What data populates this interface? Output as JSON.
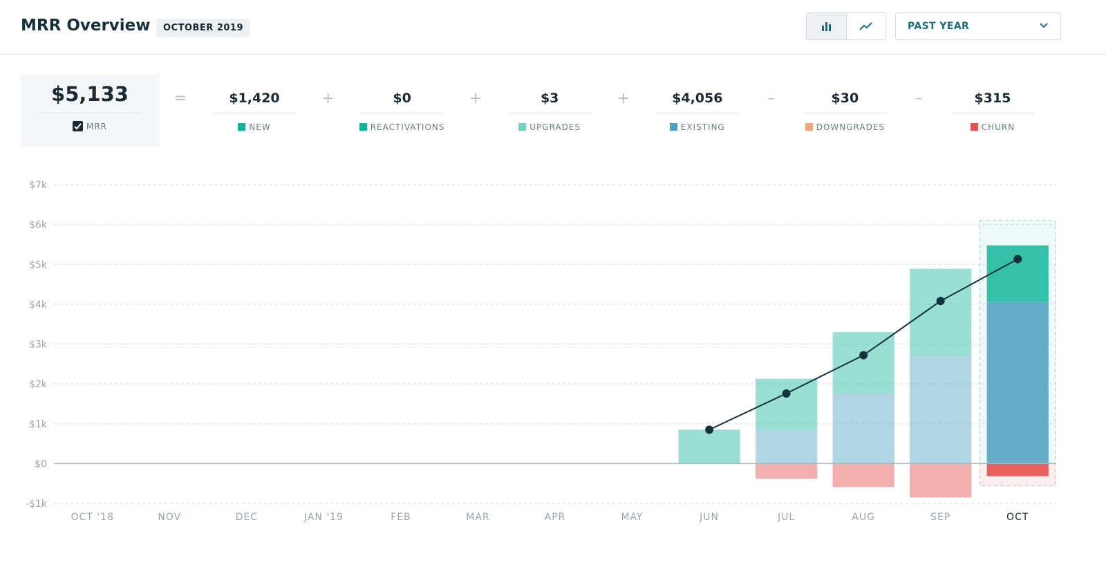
{
  "header": {
    "title": "MRR Overview",
    "badge": "OCTOBER 2019",
    "range": "PAST YEAR"
  },
  "summary": {
    "total": {
      "value": "$5,133",
      "label": "MRR"
    },
    "items": [
      {
        "operator": "=",
        "value": "$1,420",
        "label": "NEW",
        "color": "#13b29b"
      },
      {
        "operator": "+",
        "value": "$0",
        "label": "REACTIVATIONS",
        "color": "#13b29b"
      },
      {
        "operator": "+",
        "value": "$3",
        "label": "UPGRADES",
        "color": "#72d3bf"
      },
      {
        "operator": "+",
        "value": "$4,056",
        "label": "EXISTING",
        "color": "#4f9fc0"
      },
      {
        "operator": "–",
        "value": "$30",
        "label": "DOWNGRADES",
        "color": "#f4a57a"
      },
      {
        "operator": "–",
        "value": "$315",
        "label": "CHURN",
        "color": "#e55454"
      }
    ]
  },
  "chart_data": {
    "type": "stacked_bar_line",
    "categories": [
      "OCT '18",
      "NOV",
      "DEC",
      "JAN '19",
      "FEB",
      "MAR",
      "APR",
      "MAY",
      "JUN",
      "JUL",
      "AUG",
      "SEP",
      "OCT"
    ],
    "series": [
      {
        "name": "EXISTING",
        "color": "#64acc8",
        "values": [
          0,
          0,
          0,
          0,
          0,
          0,
          0,
          0,
          0,
          850,
          1760,
          2710,
          4056
        ]
      },
      {
        "name": "NEW",
        "color": "#35c0a8",
        "values": [
          0,
          0,
          0,
          0,
          0,
          0,
          0,
          0,
          850,
          1280,
          1540,
          2180,
          1420
        ]
      },
      {
        "name": "CHURN",
        "color": "#e86060",
        "values": [
          0,
          0,
          0,
          0,
          0,
          0,
          0,
          0,
          0,
          -380,
          -590,
          -850,
          -315
        ]
      },
      {
        "name": "MRR",
        "type": "line",
        "color": "#11333d",
        "values": [
          null,
          null,
          null,
          null,
          null,
          null,
          null,
          null,
          850,
          1760,
          2720,
          4080,
          5133
        ]
      }
    ],
    "ylim": [
      -1000,
      7000
    ],
    "yticks": [
      {
        "value": -1000,
        "label": "-$1k"
      },
      {
        "value": 0,
        "label": "$0"
      },
      {
        "value": 1000,
        "label": "$1k"
      },
      {
        "value": 2000,
        "label": "$2k"
      },
      {
        "value": 3000,
        "label": "$3k"
      },
      {
        "value": 4000,
        "label": "$4k"
      },
      {
        "value": 5000,
        "label": "$5k"
      },
      {
        "value": 6000,
        "label": "$6k"
      },
      {
        "value": 7000,
        "label": "$7k"
      }
    ],
    "grid": true
  }
}
